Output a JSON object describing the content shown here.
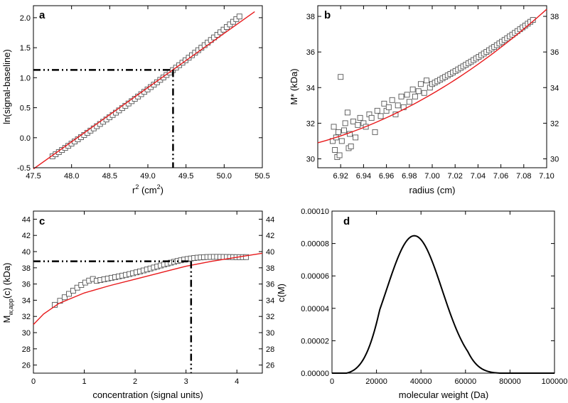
{
  "colors": {
    "fit": "#e8191b",
    "data": "#555555",
    "ink": "#000000"
  },
  "chart_data": [
    {
      "panel": "a",
      "type": "scatter",
      "xlabel": "r",
      "xlabel_sup": "2",
      "xlabel_rest": " (cm",
      "xlabel_sup2": "2",
      "xlabel_end": ")",
      "ylabel": "ln(signal-baseline)",
      "xlim": [
        47.5,
        50.5
      ],
      "ylim": [
        -0.5,
        2.2
      ],
      "xticks": [
        "47.5",
        "48.0",
        "48.5",
        "49.0",
        "49.5",
        "50.0",
        "50.5"
      ],
      "yticks": [
        "-0.5",
        "0.0",
        "0.5",
        "1.0",
        "1.5",
        "2.0"
      ],
      "points": {
        "x_start": 47.75,
        "x_end": 50.2,
        "count": 60,
        "y_start": -0.31,
        "y_end": 2.02
      },
      "fit_line": [
        [
          47.5,
          -0.52
        ],
        [
          50.4,
          2.1
        ]
      ],
      "guides": {
        "x": 49.33,
        "y": 1.13
      }
    },
    {
      "panel": "b",
      "type": "scatter",
      "xlabel": "radius (cm)",
      "ylabel": "M* (kDa)",
      "xlim": [
        6.9,
        7.1
      ],
      "ylim": [
        29.5,
        38.6
      ],
      "xticks": [
        "6.92",
        "6.94",
        "6.96",
        "6.98",
        "7.00",
        "7.02",
        "7.04",
        "7.06",
        "7.08",
        "7.10"
      ],
      "yticks": [
        "30",
        "32",
        "34",
        "36",
        "38"
      ],
      "noisy_points": [
        [
          6.913,
          31.0
        ],
        [
          6.914,
          31.8
        ],
        [
          6.915,
          30.5
        ],
        [
          6.916,
          31.2
        ],
        [
          6.917,
          30.1
        ],
        [
          6.918,
          31.5
        ],
        [
          6.919,
          30.2
        ],
        [
          6.92,
          34.6
        ],
        [
          6.921,
          31.0
        ],
        [
          6.923,
          31.6
        ],
        [
          6.924,
          32.0
        ],
        [
          6.926,
          32.6
        ],
        [
          6.927,
          30.6
        ],
        [
          6.928,
          31.4
        ],
        [
          6.929,
          30.7
        ],
        [
          6.931,
          32.1
        ],
        [
          6.933,
          31.2
        ],
        [
          6.935,
          31.9
        ],
        [
          6.937,
          32.3
        ],
        [
          6.94,
          32.0
        ],
        [
          6.942,
          31.8
        ],
        [
          6.945,
          32.5
        ],
        [
          6.947,
          32.3
        ],
        [
          6.95,
          31.5
        ],
        [
          6.952,
          32.7
        ],
        [
          6.955,
          32.4
        ],
        [
          6.958,
          33.1
        ],
        [
          6.96,
          32.7
        ],
        [
          6.962,
          32.9
        ],
        [
          6.965,
          33.3
        ],
        [
          6.968,
          32.5
        ],
        [
          6.97,
          33.0
        ],
        [
          6.973,
          33.5
        ],
        [
          6.975,
          32.9
        ],
        [
          6.978,
          33.6
        ],
        [
          6.98,
          33.2
        ],
        [
          6.983,
          33.9
        ],
        [
          6.985,
          33.5
        ],
        [
          6.988,
          33.8
        ],
        [
          6.99,
          34.2
        ],
        [
          6.993,
          33.7
        ],
        [
          6.995,
          34.4
        ],
        [
          6.998,
          34.0
        ]
      ],
      "smooth_points": {
        "x_start": 7.0,
        "x_end": 7.088,
        "count": 40,
        "y_start": 34.2,
        "y_end": 37.8
      },
      "fit_curve": [
        [
          6.9,
          30.9
        ],
        [
          6.95,
          31.95
        ],
        [
          7.0,
          33.6
        ],
        [
          7.05,
          35.6
        ],
        [
          7.1,
          38.4
        ]
      ]
    },
    {
      "panel": "c",
      "type": "scatter",
      "xlabel": "concentration (signal units)",
      "ylabel_main": "M",
      "ylabel_sub": "w,app",
      "ylabel_rest": "(c) (kDa)",
      "xlim": [
        0,
        4.5
      ],
      "ylim": [
        25,
        45
      ],
      "xticks": [
        "0",
        "1",
        "2",
        "3",
        "4"
      ],
      "yticks": [
        "26",
        "28",
        "30",
        "32",
        "34",
        "36",
        "38",
        "40",
        "42",
        "44"
      ],
      "points": {
        "x_start": 0.42,
        "x_end": 4.18,
        "count": 55
      },
      "fit_curve": [
        [
          0,
          31.0
        ],
        [
          0.2,
          32.3
        ],
        [
          0.5,
          33.6
        ],
        [
          1.0,
          34.9
        ],
        [
          1.5,
          35.8
        ],
        [
          2.0,
          36.6
        ],
        [
          2.5,
          37.4
        ],
        [
          3.0,
          38.2
        ],
        [
          3.5,
          38.8
        ],
        [
          4.0,
          39.3
        ],
        [
          4.5,
          39.8
        ]
      ],
      "guides": {
        "x": 3.1,
        "y": 38.8
      }
    },
    {
      "panel": "d",
      "type": "line",
      "xlabel": "molecular weight (Da)",
      "ylabel": "c(M)",
      "xlim": [
        0,
        100000
      ],
      "ylim": [
        0,
        0.0001
      ],
      "xticks": [
        "0",
        "20000",
        "40000",
        "60000",
        "80000",
        "100000"
      ],
      "yticks": [
        "0.00000",
        "0.00002",
        "0.00004",
        "0.00006",
        "0.00008",
        "0.00010"
      ],
      "curve": {
        "peak_x": 37000,
        "peak_y": 8.48e-05,
        "sigma": 12500,
        "support": [
          6500,
          76000
        ]
      }
    }
  ]
}
